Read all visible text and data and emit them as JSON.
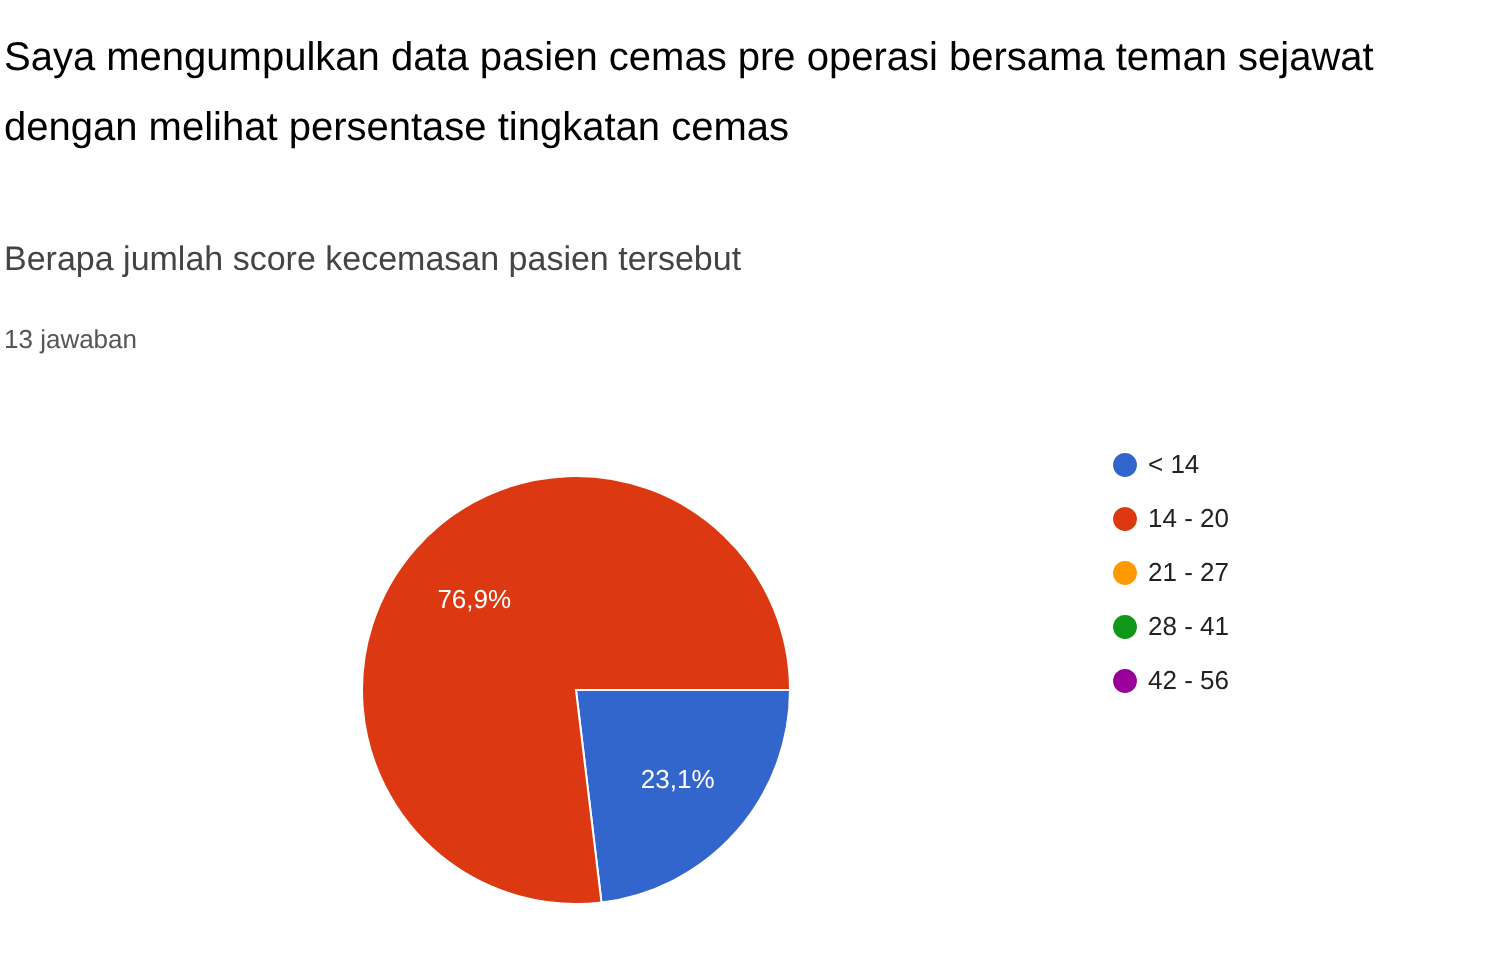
{
  "chart_data": {
    "type": "pie",
    "title": "Saya mengumpulkan data pasien cemas pre operasi bersama teman sejawat dengan melihat persentase tingkatan cemas",
    "subtitle": "Berapa jumlah score kecemasan pasien tersebut",
    "annotations": [
      "13 jawaban"
    ],
    "categories": [
      "< 14",
      "14 - 20",
      "21 - 27",
      "28 - 41",
      "42 - 56"
    ],
    "values": [
      23.1,
      76.9,
      0,
      0,
      0
    ],
    "colors": [
      "#3366cc",
      "#dc3912",
      "#ff9900",
      "#109618",
      "#990099"
    ],
    "value_labels": [
      "23,1%",
      "76,9%",
      null,
      null,
      null
    ],
    "legend": "right"
  }
}
